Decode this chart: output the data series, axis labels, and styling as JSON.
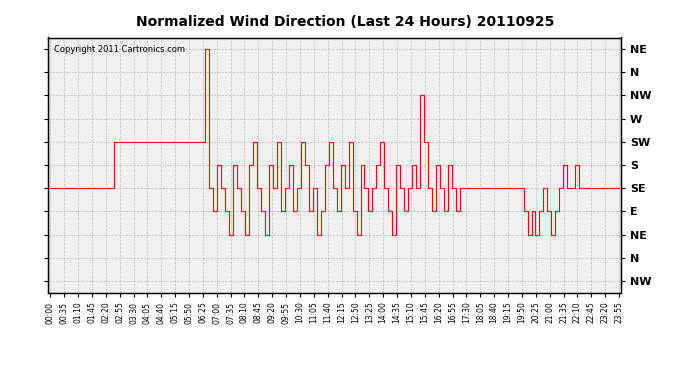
{
  "title": "Normalized Wind Direction (Last 24 Hours) 20110925",
  "copyright": "Copyright 2011 Cartronics.com",
  "background_color": "#f0f0f0",
  "line_color": "#ff0000",
  "grid_color": "#aaaaaa",
  "ytick_labels": [
    "NE",
    "N",
    "NW",
    "W",
    "SW",
    "S",
    "SE",
    "E",
    "NE",
    "N",
    "NW"
  ],
  "ytick_values": [
    10,
    9,
    8,
    7,
    6,
    5,
    4,
    3,
    2,
    1,
    0
  ],
  "ylim": [
    -0.5,
    10.5
  ],
  "xtick_labels": [
    "00:00",
    "00:35",
    "01:10",
    "01:45",
    "02:20",
    "02:55",
    "03:30",
    "04:05",
    "04:40",
    "05:15",
    "05:50",
    "06:25",
    "07:00",
    "07:35",
    "08:10",
    "08:45",
    "09:20",
    "09:55",
    "10:30",
    "11:05",
    "11:40",
    "12:15",
    "12:50",
    "13:25",
    "14:00",
    "14:35",
    "15:10",
    "15:45",
    "16:20",
    "16:55",
    "17:30",
    "18:05",
    "18:40",
    "19:15",
    "19:50",
    "20:25",
    "21:00",
    "21:35",
    "22:10",
    "22:45",
    "23:20",
    "23:55"
  ],
  "data_x": [
    0,
    1,
    2,
    3,
    4,
    5,
    6,
    7,
    8,
    9,
    10,
    11,
    12,
    13,
    14,
    15,
    16,
    17,
    18,
    19,
    20,
    21,
    22,
    23,
    24,
    25,
    26,
    27,
    28,
    29,
    30,
    31,
    32,
    33,
    34,
    35,
    36,
    37,
    38,
    39,
    40,
    41,
    42,
    43,
    44,
    45,
    46,
    47,
    48,
    49,
    50,
    51,
    52,
    53,
    54,
    55,
    56,
    57,
    58,
    59,
    60,
    61,
    62,
    63,
    64,
    65,
    66,
    67,
    68,
    69,
    70,
    71,
    72,
    73,
    74,
    75,
    76,
    77,
    78,
    79,
    80,
    81,
    82,
    83,
    84,
    85,
    86,
    87,
    88,
    89,
    90,
    91,
    92,
    93,
    94,
    95,
    96,
    97,
    98,
    99,
    100,
    101,
    102,
    103,
    104,
    105,
    106,
    107,
    108,
    109,
    110,
    111,
    112,
    113,
    114,
    115,
    116,
    117,
    118,
    119,
    120,
    121,
    122,
    123,
    124,
    125,
    126,
    127,
    128,
    129,
    130,
    131,
    132,
    133,
    134,
    135,
    136,
    137,
    138,
    139,
    140,
    141,
    142,
    143
  ],
  "data_y": [
    4,
    4,
    4,
    4,
    4,
    4,
    4,
    4,
    4,
    4,
    4,
    4,
    4,
    4,
    4,
    4,
    6,
    6,
    6,
    6,
    6,
    6,
    6,
    6,
    6,
    6,
    6,
    6,
    6,
    6,
    6,
    6,
    6,
    6,
    6,
    6,
    6,
    6,
    6,
    10,
    4,
    3,
    5,
    4,
    3,
    2,
    5,
    4,
    3,
    2,
    5,
    6,
    4,
    3,
    2,
    5,
    4,
    6,
    3,
    4,
    5,
    3,
    4,
    6,
    5,
    3,
    4,
    2,
    3,
    5,
    6,
    4,
    3,
    5,
    4,
    6,
    3,
    2,
    5,
    4,
    3,
    4,
    5,
    6,
    4,
    3,
    2,
    5,
    4,
    3,
    4,
    5,
    4,
    8,
    6,
    4,
    3,
    5,
    4,
    3,
    5,
    4,
    3,
    4,
    4,
    4,
    4,
    4,
    4,
    4,
    4,
    4,
    4,
    4,
    4,
    4,
    4,
    4,
    4,
    3,
    2,
    3,
    2,
    3,
    4,
    3,
    2,
    3,
    4,
    5,
    4,
    4,
    5,
    4,
    4,
    4,
    4,
    4,
    4,
    4,
    4,
    4,
    4,
    4
  ]
}
